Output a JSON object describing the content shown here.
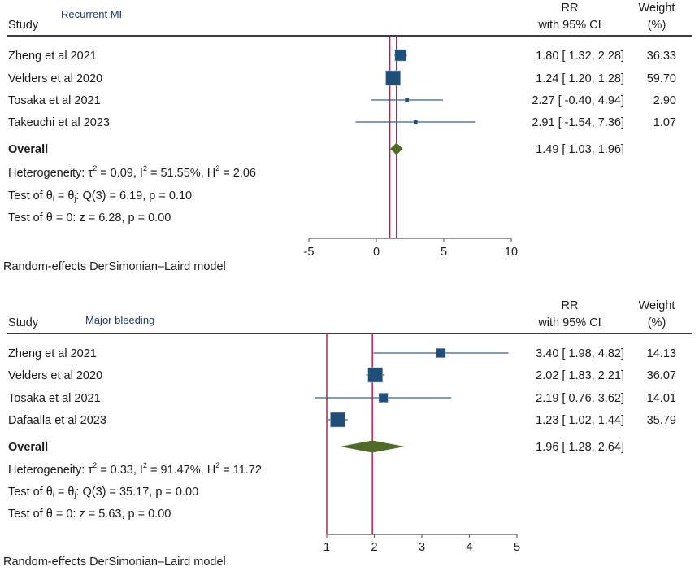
{
  "chart_data": [
    {
      "type": "forest",
      "title": "Recurrent MI",
      "columns": {
        "study": "Study",
        "effect_line1": "RR",
        "effect_line2": "with 95% CI",
        "weight_line1": "Weight",
        "weight_line2": "(%)"
      },
      "studies": [
        {
          "name": "Zheng et al 2021",
          "rr": 1.8,
          "lo": 1.32,
          "hi": 2.28,
          "weight": 36.33,
          "effect_text": "1.80 [   1.32,  2.28]",
          "weight_text": "36.33"
        },
        {
          "name": "Velders et al 2020",
          "rr": 1.24,
          "lo": 1.2,
          "hi": 1.28,
          "weight": 59.7,
          "effect_text": "1.24 [   1.20,  1.28]",
          "weight_text": "59.70"
        },
        {
          "name": "Tosaka et al 2021",
          "rr": 2.27,
          "lo": -0.4,
          "hi": 4.94,
          "weight": 2.9,
          "effect_text": "2.27 [ -0.40,  4.94]",
          "weight_text": "2.90"
        },
        {
          "name": "Takeuchi et al 2023",
          "rr": 2.91,
          "lo": -1.54,
          "hi": 7.36,
          "weight": 1.07,
          "effect_text": "2.91 [ -1.54,  7.36]",
          "weight_text": "1.07"
        }
      ],
      "overall": {
        "label": "Overall",
        "rr": 1.49,
        "lo": 1.03,
        "hi": 1.96,
        "effect_text": "1.49 [   1.03,  1.96]"
      },
      "reference_lines": [
        1,
        1.49
      ],
      "heterogeneity": {
        "prefix": "Heterogeneity: ",
        "tau2": "0.09",
        "i2": "51.55%",
        "h2": "2.06"
      },
      "test_homogeneity": {
        "text_pre": "Test of θ",
        "text_mid": " = θ",
        "text_post": ": Q(3) = 6.19, p = 0.10"
      },
      "test_effect": "Test of θ = 0: z = 6.28, p = 0.00",
      "xaxis": {
        "min": -5,
        "max": 10,
        "ticks": [
          -5,
          0,
          5,
          10
        ],
        "tick_labels": [
          "-5",
          "0",
          "5",
          "10"
        ]
      },
      "model_note": "Random-effects DerSimonian–Laird model"
    },
    {
      "type": "forest",
      "title": "Major bleeding",
      "columns": {
        "study": "Study",
        "effect_line1": "RR",
        "effect_line2": "with 95% CI",
        "weight_line1": "Weight",
        "weight_line2": "(%)"
      },
      "studies": [
        {
          "name": "Zheng et al 2021",
          "rr": 3.4,
          "lo": 1.98,
          "hi": 4.82,
          "weight": 14.13,
          "effect_text": "3.40 [ 1.98,  4.82]",
          "weight_text": "14.13"
        },
        {
          "name": "Velders et al 2020",
          "rr": 2.02,
          "lo": 1.83,
          "hi": 2.21,
          "weight": 36.07,
          "effect_text": "2.02 [ 1.83,  2.21]",
          "weight_text": "36.07"
        },
        {
          "name": "Tosaka et al 2021",
          "rr": 2.19,
          "lo": 0.76,
          "hi": 3.62,
          "weight": 14.01,
          "effect_text": "2.19 [ 0.76,  3.62]",
          "weight_text": "14.01"
        },
        {
          "name": "Dafaalla et al 2023",
          "rr": 1.23,
          "lo": 1.02,
          "hi": 1.44,
          "weight": 35.79,
          "effect_text": "1.23 [ 1.02,  1.44]",
          "weight_text": "35.79"
        }
      ],
      "overall": {
        "label": "Overall",
        "rr": 1.96,
        "lo": 1.28,
        "hi": 2.64,
        "effect_text": "1.96 [ 1.28,  2.64]"
      },
      "reference_lines": [
        1,
        1.96
      ],
      "heterogeneity": {
        "prefix": "Heterogeneity: ",
        "tau2": "0.33",
        "i2": "91.47%",
        "h2": "11.72"
      },
      "test_homogeneity": {
        "text_pre": "Test of θ",
        "text_mid": " = θ",
        "text_post": ": Q(3) = 35.17, p = 0.00"
      },
      "test_effect": "Test of θ = 0: z = 5.63, p = 0.00",
      "xaxis": {
        "min": 1,
        "max": 5,
        "ticks": [
          1,
          2,
          3,
          4,
          5
        ],
        "tick_labels": [
          "1",
          "2",
          "3",
          "4",
          "5"
        ]
      },
      "model_note": "Random-effects DerSimonian–Laird model"
    }
  ],
  "colors": {
    "marker": "#1f4e79",
    "ci_line": "#3b5f86",
    "ref_line": "#c8184a",
    "diamond": "#4f6b27",
    "rule": "#3c3c3c",
    "axis": "#707070"
  }
}
